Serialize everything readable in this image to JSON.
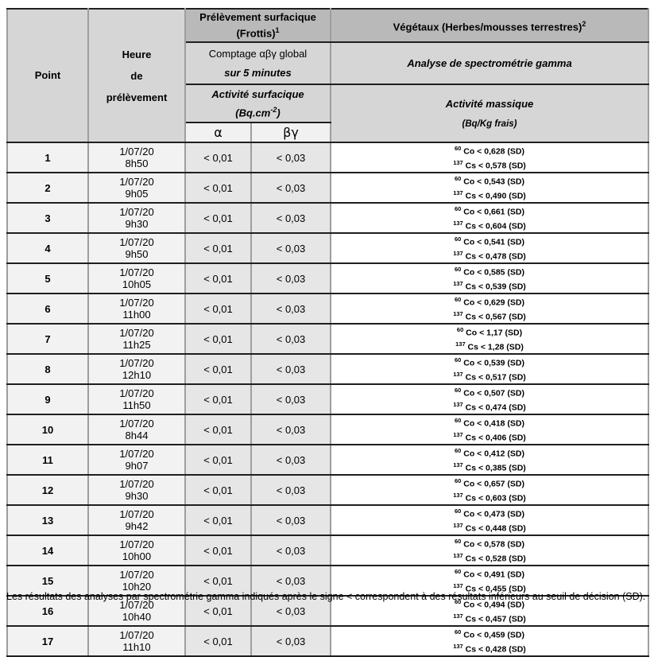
{
  "colors": {
    "header_dark_gray": "#b9b9b9",
    "header_mid_gray": "#d6d6d6",
    "header_light_gray": "#f1f1f1",
    "row_label_gray": "#f2f2f2",
    "row_value_gray": "#e6e6e6",
    "horizontal_border": "#1f1f1f",
    "vertical_border": "#9e9e9e"
  },
  "table": {
    "header": {
      "point": "Point",
      "heure_lines": [
        "Heure",
        "de",
        "prélèvement"
      ],
      "surfacique_line1": "Prélèvement surfacique",
      "surfacique_line2": "(Frottis)",
      "surfacique_footnote_mark": "1",
      "comptage_line1": "Comptage αβγ global",
      "comptage_line2": "sur 5 minutes",
      "activite_surfacique": "Activité surfacique",
      "unit_surfacique_prefix": "(Bq.cm",
      "unit_surfacique_sup": "-2",
      "unit_surfacique_suffix": ")",
      "alpha_symbol": "α",
      "beta_gamma_symbol": "βγ",
      "vegetaux_title": "Végétaux (Herbes/mousses terrestres)",
      "vegetaux_footnote_mark": "2",
      "analyse": "Analyse de spectrométrie gamma",
      "activite_massique": "Activité massique",
      "unit_massique": "(Bq/Kg frais)"
    },
    "rows": [
      {
        "point": "1",
        "date": "1/07/20",
        "time": "8h50",
        "alpha": "< 0,01",
        "beta_gamma": "< 0,03",
        "co_isotope": "60",
        "co_text": "Co < 0,628 (SD)",
        "cs_isotope": "137",
        "cs_text": "Cs < 0,578 (SD)"
      },
      {
        "point": "2",
        "date": "1/07/20",
        "time": "9h05",
        "alpha": "< 0,01",
        "beta_gamma": "< 0,03",
        "co_isotope": "60",
        "co_text": "Co < 0,543 (SD)",
        "cs_isotope": "137",
        "cs_text": "Cs < 0,490 (SD)"
      },
      {
        "point": "3",
        "date": "1/07/20",
        "time": "9h30",
        "alpha": "< 0,01",
        "beta_gamma": "< 0,03",
        "co_isotope": "60",
        "co_text": "Co < 0,661 (SD)",
        "cs_isotope": "137",
        "cs_text": "Cs < 0,604 (SD)"
      },
      {
        "point": "4",
        "date": "1/07/20",
        "time": "9h50",
        "alpha": "< 0,01",
        "beta_gamma": "< 0,03",
        "co_isotope": "60",
        "co_text": "Co < 0,541 (SD)",
        "cs_isotope": "137",
        "cs_text": "Cs < 0,478 (SD)"
      },
      {
        "point": "5",
        "date": "1/07/20",
        "time": "10h05",
        "alpha": "< 0,01",
        "beta_gamma": "< 0,03",
        "co_isotope": "60",
        "co_text": "Co < 0,585 (SD)",
        "cs_isotope": "137",
        "cs_text": "Cs < 0,539 (SD)"
      },
      {
        "point": "6",
        "date": "1/07/20",
        "time": "11h00",
        "alpha": "< 0,01",
        "beta_gamma": "< 0,03",
        "co_isotope": "60",
        "co_text": "Co < 0,629 (SD)",
        "cs_isotope": "137",
        "cs_text": "Cs < 0,567 (SD)"
      },
      {
        "point": "7",
        "date": "1/07/20",
        "time": "11h25",
        "alpha": "< 0,01",
        "beta_gamma": "< 0,03",
        "co_isotope": "60",
        "co_text": "Co < 1,17 (SD)",
        "cs_isotope": "137",
        "cs_text": "Cs < 1,28 (SD)"
      },
      {
        "point": "8",
        "date": "1/07/20",
        "time": "12h10",
        "alpha": "< 0,01",
        "beta_gamma": "< 0,03",
        "co_isotope": "60",
        "co_text": "Co < 0,539 (SD)",
        "cs_isotope": "137",
        "cs_text": "Cs < 0,517 (SD)"
      },
      {
        "point": "9",
        "date": "1/07/20",
        "time": "11h50",
        "alpha": "< 0,01",
        "beta_gamma": "< 0,03",
        "co_isotope": "60",
        "co_text": "Co < 0,507 (SD)",
        "cs_isotope": "137",
        "cs_text": "Cs < 0,474 (SD)"
      },
      {
        "point": "10",
        "date": "1/07/20",
        "time": "8h44",
        "alpha": "< 0,01",
        "beta_gamma": "< 0,03",
        "co_isotope": "60",
        "co_text": "Co < 0,418 (SD)",
        "cs_isotope": "137",
        "cs_text": "Cs < 0,406 (SD)"
      },
      {
        "point": "11",
        "date": "1/07/20",
        "time": "9h07",
        "alpha": "< 0,01",
        "beta_gamma": "< 0,03",
        "co_isotope": "60",
        "co_text": "Co < 0,412 (SD)",
        "cs_isotope": "137",
        "cs_text": "Cs < 0,385 (SD)"
      },
      {
        "point": "12",
        "date": "1/07/20",
        "time": "9h30",
        "alpha": "< 0,01",
        "beta_gamma": "< 0,03",
        "co_isotope": "60",
        "co_text": "Co < 0,657 (SD)",
        "cs_isotope": "137",
        "cs_text": "Cs < 0,603 (SD)"
      },
      {
        "point": "13",
        "date": "1/07/20",
        "time": "9h42",
        "alpha": "< 0,01",
        "beta_gamma": "< 0,03",
        "co_isotope": "60",
        "co_text": "Co < 0,473 (SD)",
        "cs_isotope": "137",
        "cs_text": "Cs < 0,448 (SD)"
      },
      {
        "point": "14",
        "date": "1/07/20",
        "time": "10h00",
        "alpha": "< 0,01",
        "beta_gamma": "< 0,03",
        "co_isotope": "60",
        "co_text": "Co < 0,578 (SD)",
        "cs_isotope": "137",
        "cs_text": "Cs < 0,528 (SD)"
      },
      {
        "point": "15",
        "date": "1/07/20",
        "time": "10h20",
        "alpha": "< 0,01",
        "beta_gamma": "< 0,03",
        "co_isotope": "60",
        "co_text": "Co < 0,491 (SD)",
        "cs_isotope": "137",
        "cs_text": "Cs < 0,455 (SD)"
      },
      {
        "point": "16",
        "date": "1/07/20",
        "time": "10h40",
        "alpha": "< 0,01",
        "beta_gamma": "< 0,03",
        "co_isotope": "60",
        "co_text": "Co < 0,494 (SD)",
        "cs_isotope": "137",
        "cs_text": "Cs < 0,457 (SD)"
      },
      {
        "point": "17",
        "date": "1/07/20",
        "time": "11h10",
        "alpha": "< 0,01",
        "beta_gamma": "< 0,03",
        "co_isotope": "60",
        "co_text": "Co < 0,459 (SD)",
        "cs_isotope": "137",
        "cs_text": "Cs < 0,428 (SD)"
      }
    ]
  },
  "footnote": "Les résultats des analyses par spectrométrie gamma indiqués après le signe < correspondent à des résultats inférieurs au seuil de décision (SD)."
}
